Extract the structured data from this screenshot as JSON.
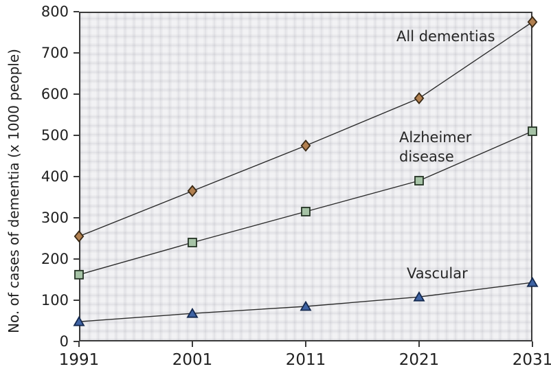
{
  "chart_data": {
    "type": "line",
    "title": "",
    "xlabel": "",
    "ylabel": "No. of cases of dementia (x 1000 people)",
    "x_tick_labels": [
      "1991",
      "2001",
      "2011",
      "2021",
      "2031"
    ],
    "y_ticks": [
      0,
      100,
      200,
      300,
      400,
      500,
      600,
      700,
      800
    ],
    "ylim": [
      0,
      800
    ],
    "grid": false,
    "legend_position": "inline labels beside lines",
    "line_color": "#2b2b2b",
    "axis_color": "#3a3a3a",
    "plot_background": "#f2f2f4",
    "series": [
      {
        "name": "All dementias",
        "marker": "diamond",
        "marker_fill": "#b28050",
        "marker_stroke": "#3a2a16",
        "values": [
          255,
          365,
          475,
          590,
          775
        ]
      },
      {
        "name": "Alzheimer disease",
        "marker": "square",
        "marker_fill": "#a6c3a6",
        "marker_stroke": "#233223",
        "values": [
          162,
          240,
          315,
          390,
          510
        ]
      },
      {
        "name": "Vascular",
        "marker": "triangle",
        "marker_fill": "#3e63a4",
        "marker_stroke": "#14294f",
        "values": [
          48,
          68,
          85,
          108,
          143
        ]
      }
    ]
  }
}
